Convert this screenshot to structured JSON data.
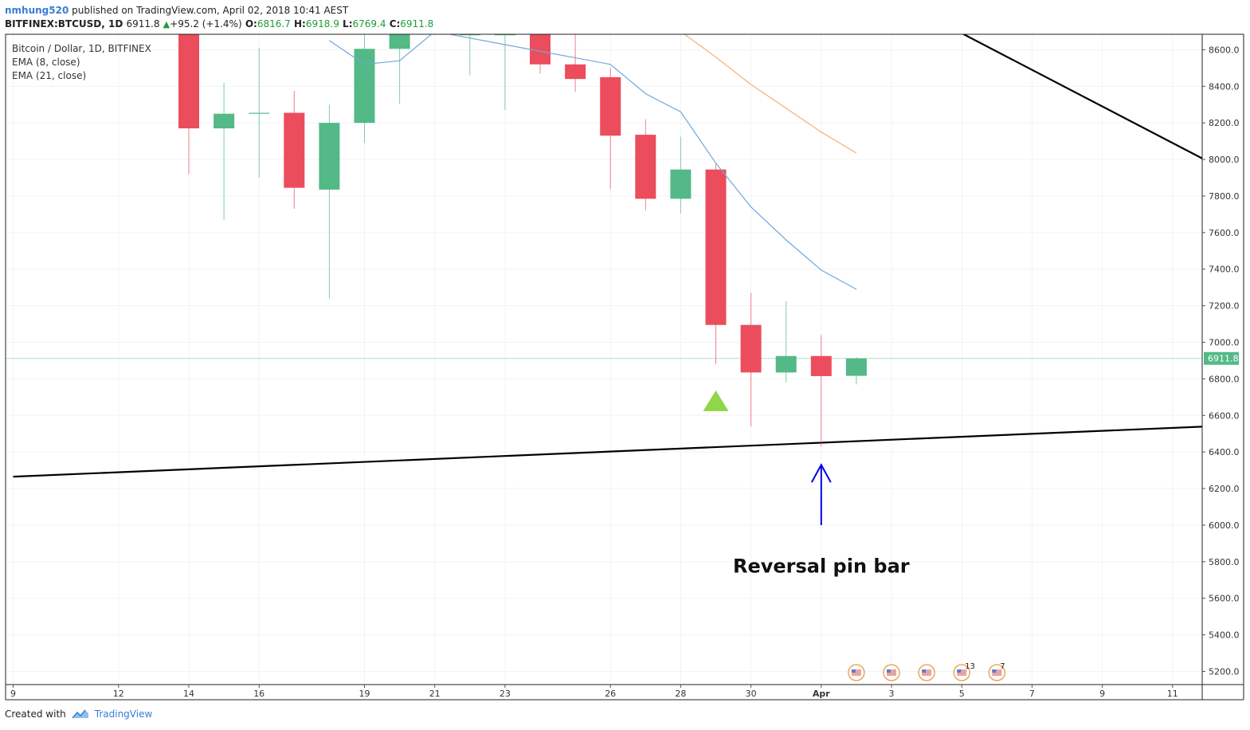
{
  "header": {
    "user": "nmhung520",
    "published": " published on TradingView.com, April 02, 2018 10:41 AEST"
  },
  "symbol_line": {
    "symbol": "BITFINEX:BTCUSD, 1D",
    "last": "6911.8",
    "change": "+95.2 (+1.4%)",
    "o_label": "O:",
    "o": "6816.7",
    "h_label": "H:",
    "h": "6918.9",
    "l_label": "L:",
    "l": "6769.4",
    "c_label": "C:",
    "c": "6911.8"
  },
  "legend": {
    "title": "Bitcoin / Dollar, 1D, BITFINEX",
    "ema8": "EMA (8, close)",
    "ema21": "EMA (21, close)"
  },
  "footer": {
    "created_with": "Created with",
    "brand": "TradingView"
  },
  "colors": {
    "up": "#53b987",
    "down": "#eb4d5c",
    "ema8": "#6fa8dc",
    "ema21": "#f6b26b",
    "trendline": "#000000",
    "arrow": "#0000ee",
    "signal": "#8fd64a",
    "price_line": "#53b987"
  },
  "chart_data": {
    "type": "candlestick",
    "ylim": [
      5100,
      8700
    ],
    "y_ticks": [
      8600,
      8400,
      8200,
      8000,
      7800,
      7600,
      7400,
      7200,
      7000,
      6800,
      6600,
      6400,
      6200,
      6000,
      5800,
      5600,
      5400,
      5200
    ],
    "y_tick_labels": [
      "8600.0",
      "8400.0",
      "8200.0",
      "8000.0",
      "7800.0",
      "7600.0",
      "7400.0",
      "7200.0",
      "7000.0",
      "6800.0",
      "6600.0",
      "6400.0",
      "6200.0",
      "6000.0",
      "5800.0",
      "5600.0",
      "5400.0",
      "5200.0"
    ],
    "x_range": [
      "2018-03-09",
      "2018-04-12"
    ],
    "x_ticks": [
      {
        "date": "2018-03-09",
        "label": "9"
      },
      {
        "date": "2018-03-12",
        "label": "12"
      },
      {
        "date": "2018-03-14",
        "label": "14"
      },
      {
        "date": "2018-03-16",
        "label": "16"
      },
      {
        "date": "2018-03-19",
        "label": "19"
      },
      {
        "date": "2018-03-21",
        "label": "21"
      },
      {
        "date": "2018-03-23",
        "label": "23"
      },
      {
        "date": "2018-03-26",
        "label": "26"
      },
      {
        "date": "2018-03-28",
        "label": "28"
      },
      {
        "date": "2018-03-30",
        "label": "30"
      },
      {
        "date": "2018-04-01",
        "label": "Apr"
      },
      {
        "date": "2018-04-03",
        "label": "3"
      },
      {
        "date": "2018-04-05",
        "label": "5"
      },
      {
        "date": "2018-04-07",
        "label": "7"
      },
      {
        "date": "2018-04-09",
        "label": "9"
      },
      {
        "date": "2018-04-11",
        "label": "11"
      }
    ],
    "candles": [
      {
        "date": "2018-03-14",
        "o": 8700,
        "h": 8700,
        "l": 7920,
        "c": 8170
      },
      {
        "date": "2018-03-15",
        "o": 8170,
        "h": 8420,
        "l": 7670,
        "c": 8250
      },
      {
        "date": "2018-03-16",
        "o": 8250,
        "h": 8610,
        "l": 7900,
        "c": 8255
      },
      {
        "date": "2018-03-17",
        "o": 8255,
        "h": 8375,
        "l": 7730,
        "c": 7845
      },
      {
        "date": "2018-03-18",
        "o": 7835,
        "h": 8300,
        "l": 7240,
        "c": 8200
      },
      {
        "date": "2018-03-19",
        "o": 8200,
        "h": 8700,
        "l": 8090,
        "c": 8605
      },
      {
        "date": "2018-03-20",
        "o": 8605,
        "h": 8700,
        "l": 8305,
        "c": 8700
      },
      {
        "date": "2018-03-22",
        "o": 8700,
        "h": 8700,
        "l": 8460,
        "c": 8700
      },
      {
        "date": "2018-03-23",
        "o": 8700,
        "h": 8700,
        "l": 8270,
        "c": 8700
      },
      {
        "date": "2018-03-24",
        "o": 8700,
        "h": 8700,
        "l": 8470,
        "c": 8520
      },
      {
        "date": "2018-03-25",
        "o": 8520,
        "h": 8700,
        "l": 8370,
        "c": 8440
      },
      {
        "date": "2018-03-26",
        "o": 8450,
        "h": 8500,
        "l": 7840,
        "c": 8130
      },
      {
        "date": "2018-03-27",
        "o": 8135,
        "h": 8220,
        "l": 7720,
        "c": 7785
      },
      {
        "date": "2018-03-28",
        "o": 7785,
        "h": 8125,
        "l": 7705,
        "c": 7945
      },
      {
        "date": "2018-03-29",
        "o": 7945,
        "h": 7975,
        "l": 6880,
        "c": 7095
      },
      {
        "date": "2018-03-30",
        "o": 7095,
        "h": 7270,
        "l": 6540,
        "c": 6835
      },
      {
        "date": "2018-03-31",
        "o": 6835,
        "h": 7225,
        "l": 6780,
        "c": 6925
      },
      {
        "date": "2018-04-01",
        "o": 6925,
        "h": 7040,
        "l": 6430,
        "c": 6815
      },
      {
        "date": "2018-04-02",
        "o": 6816.7,
        "h": 6918.9,
        "l": 6769.4,
        "c": 6911.8
      }
    ],
    "ema8": {
      "name": "EMA (8, close)",
      "points": [
        {
          "date": "2018-03-18",
          "y": 8650
        },
        {
          "date": "2018-03-19",
          "y": 8520
        },
        {
          "date": "2018-03-20",
          "y": 8540
        },
        {
          "date": "2018-03-21",
          "y": 8700
        },
        {
          "date": "2018-03-26",
          "y": 8520
        },
        {
          "date": "2018-03-27",
          "y": 8360
        },
        {
          "date": "2018-03-28",
          "y": 8260
        },
        {
          "date": "2018-03-29",
          "y": 7980
        },
        {
          "date": "2018-03-30",
          "y": 7740
        },
        {
          "date": "2018-03-31",
          "y": 7560
        },
        {
          "date": "2018-04-01",
          "y": 7395
        },
        {
          "date": "2018-04-02",
          "y": 7290
        }
      ]
    },
    "ema21": {
      "name": "EMA (21, close)",
      "points": [
        {
          "date": "2018-03-28",
          "y": 8700
        },
        {
          "date": "2018-03-29",
          "y": 8560
        },
        {
          "date": "2018-03-30",
          "y": 8410
        },
        {
          "date": "2018-03-31",
          "y": 8280
        },
        {
          "date": "2018-04-01",
          "y": 8150
        },
        {
          "date": "2018-04-02",
          "y": 8035
        }
      ]
    },
    "trendlines": [
      {
        "from": {
          "date": "2018-03-09",
          "y": 6265
        },
        "to": {
          "date": "2018-04-12",
          "y": 6540
        }
      },
      {
        "from": {
          "date": "2018-04-05",
          "y": 8690
        },
        "to": {
          "date": "2018-04-12",
          "y": 7990
        }
      }
    ],
    "last_price": 6911.8,
    "last_price_label": "6911.8",
    "annotations": [
      {
        "type": "text",
        "text": "Reversal pin bar",
        "date": "2018-04-01",
        "y": 5740
      },
      {
        "type": "arrow",
        "date": "2018-04-01",
        "y_from": 6000,
        "y_to": 6330
      },
      {
        "type": "triangle",
        "date": "2018-03-29",
        "y": 6680
      }
    ],
    "event_badges": [
      {
        "date": "2018-04-02",
        "count": ""
      },
      {
        "date": "2018-04-03",
        "count": ""
      },
      {
        "date": "2018-04-04",
        "count": ""
      },
      {
        "date": "2018-04-05",
        "count": "13"
      },
      {
        "date": "2018-04-06",
        "count": "7"
      }
    ]
  }
}
